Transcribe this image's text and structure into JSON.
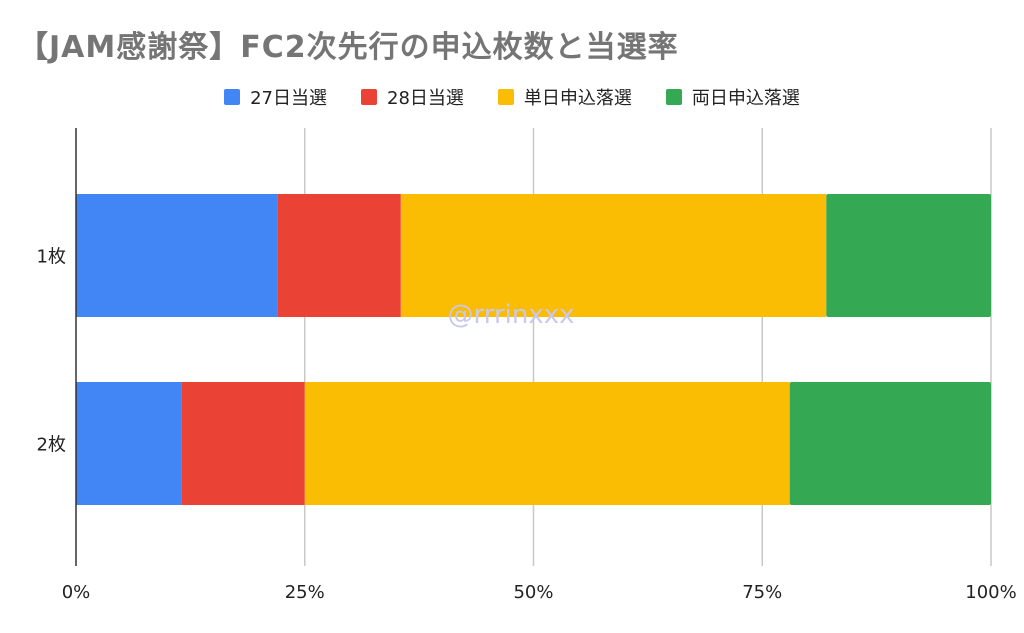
{
  "title": "【JAM感謝祭】FC2次先行の申込枚数と当選率",
  "watermark": "@rrrinxxx",
  "colors": {
    "series": [
      "#4285f4",
      "#ea4335",
      "#fbbc04",
      "#34a853"
    ],
    "grid": "#c8c8c8",
    "axis": "#333333"
  },
  "chart_data": {
    "type": "bar",
    "orientation": "horizontal",
    "stacked": "percent",
    "title": "【JAM感謝祭】FC2次先行の申込枚数と当選率",
    "categories": [
      "1枚",
      "2枚"
    ],
    "series": [
      {
        "name": "27日当選",
        "values": [
          22,
          11.5
        ]
      },
      {
        "name": "28日当選",
        "values": [
          13.5,
          13.5
        ]
      },
      {
        "name": "単日申込落選",
        "values": [
          46.5,
          53
        ]
      },
      {
        "name": "両日申込落選",
        "values": [
          18,
          22
        ]
      }
    ],
    "xlim": [
      0,
      100
    ],
    "xticks": [
      "0%",
      "25%",
      "50%",
      "75%",
      "100%"
    ],
    "grid": true,
    "legend": "top-center"
  }
}
